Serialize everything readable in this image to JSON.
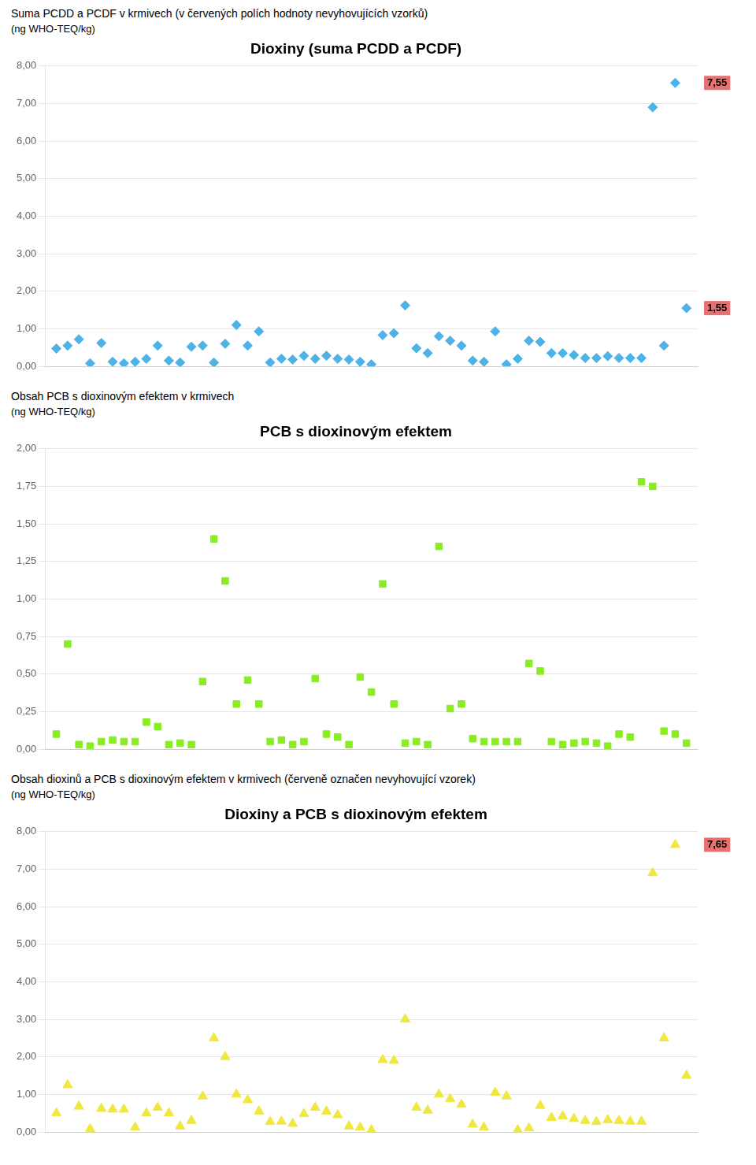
{
  "chart_data": [
    {
      "type": "scatter",
      "title": "Dioxiny (suma PCDD a PCDF)",
      "subtitle": "Suma PCDD a PCDF v krmivech (v červených polích hodnoty nevyhovujících vzorků)",
      "ylabel": "(ng WHO-TEQ/kg)",
      "ylim": [
        0,
        8.0
      ],
      "yticks": [
        {
          "value": 0.0,
          "label": "0,00"
        },
        {
          "value": 1.0,
          "label": "1,00"
        },
        {
          "value": 2.0,
          "label": "2,00"
        },
        {
          "value": 3.0,
          "label": "3,00"
        },
        {
          "value": 4.0,
          "label": "4,00"
        },
        {
          "value": 5.0,
          "label": "5,00"
        },
        {
          "value": 6.0,
          "label": "6,00"
        },
        {
          "value": 7.0,
          "label": "7,00"
        },
        {
          "value": 8.0,
          "label": "8,00"
        }
      ],
      "color": "#4db3e6",
      "marker": "diamond",
      "grid": true,
      "tick_labels": "y",
      "annotations": [
        {
          "text": "7,55",
          "y": 7.55,
          "color": "#e87070"
        },
        {
          "text": "1,55",
          "y": 1.55,
          "color": "#e87070"
        }
      ],
      "values": [
        0.47,
        0.55,
        0.72,
        0.08,
        0.62,
        0.12,
        0.08,
        0.12,
        0.2,
        0.55,
        0.15,
        0.1,
        0.52,
        0.55,
        0.1,
        0.6,
        1.1,
        0.55,
        0.93,
        0.1,
        0.2,
        0.18,
        0.28,
        0.2,
        0.28,
        0.2,
        0.18,
        0.12,
        0.05,
        0.83,
        0.88,
        1.62,
        0.48,
        0.35,
        0.8,
        0.68,
        0.55,
        0.15,
        0.12,
        0.93,
        0.05,
        0.2,
        0.68,
        0.65,
        0.35,
        0.35,
        0.3,
        0.22,
        0.22,
        0.27,
        0.22,
        0.22,
        0.22,
        6.9,
        0.55,
        7.55,
        1.55
      ]
    },
    {
      "type": "scatter",
      "title": "PCB s dioxinovým efektem",
      "subtitle": "Obsah PCB s dioxinovým efektem v krmivech",
      "ylabel": "(ng WHO-TEQ/kg)",
      "ylim": [
        0,
        2.0
      ],
      "yticks": [
        {
          "value": 0.0,
          "label": "0,00"
        },
        {
          "value": 0.25,
          "label": "0,25"
        },
        {
          "value": 0.5,
          "label": "0,50"
        },
        {
          "value": 0.75,
          "label": "0,75"
        },
        {
          "value": 1.0,
          "label": "1,00"
        },
        {
          "value": 1.25,
          "label": "1,25"
        },
        {
          "value": 1.5,
          "label": "1,50"
        },
        {
          "value": 1.75,
          "label": "1,75"
        },
        {
          "value": 2.0,
          "label": "2,00"
        }
      ],
      "color": "#88ee22",
      "marker": "square",
      "grid": true,
      "tick_labels": "y",
      "annotations": [],
      "values": [
        0.1,
        0.7,
        0.03,
        0.02,
        0.05,
        0.06,
        0.05,
        0.05,
        0.18,
        0.15,
        0.03,
        0.04,
        0.03,
        0.45,
        1.4,
        1.12,
        0.3,
        0.46,
        0.3,
        0.05,
        0.06,
        0.03,
        0.05,
        0.47,
        0.1,
        0.08,
        0.03,
        0.48,
        0.38,
        1.1,
        0.3,
        0.04,
        0.05,
        0.03,
        1.35,
        0.27,
        0.3,
        0.07,
        0.05,
        0.05,
        0.05,
        0.05,
        0.57,
        0.52,
        0.05,
        0.03,
        0.04,
        0.05,
        0.04,
        0.02,
        0.1,
        0.08,
        1.78,
        1.75,
        0.12,
        0.1,
        0.04
      ]
    },
    {
      "type": "scatter",
      "title": "Dioxiny a PCB s dioxinovým efektem",
      "subtitle": "Obsah dioxinů a PCB s dioxinovým efektem v krmivech (červeně označen nevyhovující vzorek)",
      "ylabel": "(ng WHO-TEQ/kg)",
      "ylim": [
        0,
        8.0
      ],
      "yticks": [
        {
          "value": 0.0,
          "label": "0,00"
        },
        {
          "value": 1.0,
          "label": "1,00"
        },
        {
          "value": 2.0,
          "label": "2,00"
        },
        {
          "value": 3.0,
          "label": "3,00"
        },
        {
          "value": 4.0,
          "label": "4,00"
        },
        {
          "value": 5.0,
          "label": "5,00"
        },
        {
          "value": 6.0,
          "label": "6,00"
        },
        {
          "value": 7.0,
          "label": "7,00"
        },
        {
          "value": 8.0,
          "label": "8,00"
        }
      ],
      "color": "#f0e840",
      "marker": "triangle",
      "grid": true,
      "tick_labels": "y",
      "annotations": [
        {
          "text": "7,65",
          "y": 7.65,
          "color": "#e87070"
        }
      ],
      "values": [
        0.5,
        1.25,
        0.68,
        0.08,
        0.62,
        0.6,
        0.6,
        0.12,
        0.5,
        0.65,
        0.5,
        0.15,
        0.3,
        0.95,
        2.5,
        2.0,
        1.0,
        0.85,
        0.55,
        0.27,
        0.28,
        0.22,
        0.48,
        0.65,
        0.55,
        0.45,
        0.15,
        0.12,
        0.05,
        1.92,
        1.9,
        3.0,
        0.65,
        0.57,
        1.0,
        0.88,
        0.73,
        0.2,
        0.12,
        1.05,
        0.95,
        0.05,
        0.1,
        0.7,
        0.38,
        0.42,
        0.35,
        0.3,
        0.27,
        0.32,
        0.3,
        0.28,
        0.28,
        6.9,
        2.5,
        7.65,
        1.5
      ]
    }
  ]
}
